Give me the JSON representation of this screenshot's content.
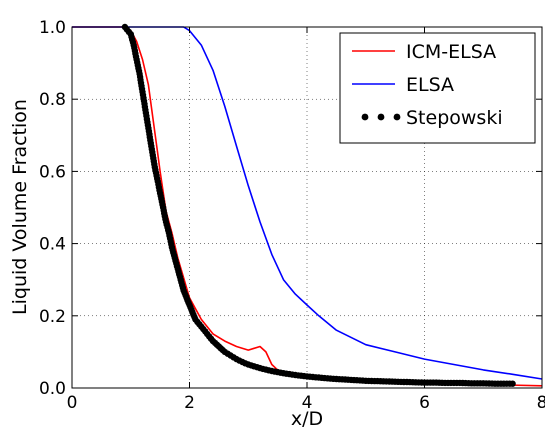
{
  "chart_data": {
    "type": "line",
    "title": "",
    "xlabel": "x/D",
    "ylabel": "Liquid Volume Fraction",
    "xlim": [
      0,
      8
    ],
    "ylim": [
      0,
      1.0
    ],
    "x_ticks": [
      "0",
      "2",
      "4",
      "6",
      "8"
    ],
    "y_ticks": [
      "0.0",
      "0.2",
      "0.4",
      "0.6",
      "0.8",
      "1.0"
    ],
    "grid": true,
    "legend_position": "top-right",
    "series": [
      {
        "name": "ICM-ELSA",
        "style": "line",
        "color": "#ff0000",
        "x": [
          0,
          0.9,
          1.0,
          1.1,
          1.2,
          1.3,
          1.35,
          1.45,
          1.5,
          1.6,
          1.7,
          1.8,
          2.0,
          2.2,
          2.4,
          2.6,
          2.8,
          3.0,
          3.1,
          3.2,
          3.3,
          3.4,
          3.5,
          3.6,
          3.7,
          3.8,
          4.0,
          4.5,
          5.0,
          6.0,
          7.0,
          8.0
        ],
        "y": [
          1.0,
          1.0,
          0.99,
          0.96,
          0.91,
          0.84,
          0.78,
          0.66,
          0.6,
          0.49,
          0.43,
          0.36,
          0.25,
          0.19,
          0.15,
          0.13,
          0.115,
          0.105,
          0.11,
          0.115,
          0.1,
          0.065,
          0.05,
          0.045,
          0.045,
          0.04,
          0.035,
          0.028,
          0.022,
          0.015,
          0.01,
          0.006
        ]
      },
      {
        "name": "ELSA",
        "style": "line",
        "color": "#0000ff",
        "x": [
          0,
          1.9,
          2.0,
          2.2,
          2.4,
          2.6,
          2.8,
          3.0,
          3.2,
          3.4,
          3.6,
          3.8,
          4.0,
          4.2,
          4.5,
          5.0,
          5.5,
          6.0,
          6.5,
          7.0,
          7.5,
          8.0
        ],
        "y": [
          1.0,
          1.0,
          0.99,
          0.95,
          0.88,
          0.78,
          0.67,
          0.56,
          0.46,
          0.37,
          0.3,
          0.26,
          0.23,
          0.2,
          0.16,
          0.12,
          0.1,
          0.08,
          0.065,
          0.05,
          0.038,
          0.025
        ]
      },
      {
        "name": "Stepowski",
        "style": "points",
        "color": "#000000",
        "x": [
          0.9,
          1.0,
          1.05,
          1.1,
          1.15,
          1.2,
          1.25,
          1.3,
          1.35,
          1.4,
          1.45,
          1.5,
          1.55,
          1.6,
          1.65,
          1.7,
          1.75,
          1.8,
          1.85,
          1.9,
          1.95,
          2.0,
          2.05,
          2.1,
          2.2,
          2.3,
          2.4,
          2.5,
          2.6,
          2.7,
          2.8,
          2.9,
          3.0,
          3.2,
          3.4,
          3.6,
          3.8,
          4.0,
          4.2,
          4.4,
          4.6,
          4.8,
          5.0,
          5.2,
          5.4,
          5.6,
          5.8,
          6.0,
          6.2,
          6.4,
          6.6,
          6.8,
          7.0,
          7.2,
          7.4,
          7.5
        ],
        "y": [
          1.0,
          0.98,
          0.95,
          0.91,
          0.87,
          0.82,
          0.77,
          0.72,
          0.67,
          0.62,
          0.58,
          0.54,
          0.5,
          0.46,
          0.43,
          0.39,
          0.36,
          0.33,
          0.3,
          0.27,
          0.25,
          0.23,
          0.21,
          0.19,
          0.17,
          0.15,
          0.13,
          0.115,
          0.1,
          0.09,
          0.08,
          0.072,
          0.065,
          0.055,
          0.047,
          0.041,
          0.036,
          0.032,
          0.029,
          0.026,
          0.024,
          0.022,
          0.02,
          0.019,
          0.018,
          0.017,
          0.016,
          0.015,
          0.015,
          0.014,
          0.014,
          0.013,
          0.013,
          0.012,
          0.012,
          0.012
        ]
      }
    ]
  }
}
